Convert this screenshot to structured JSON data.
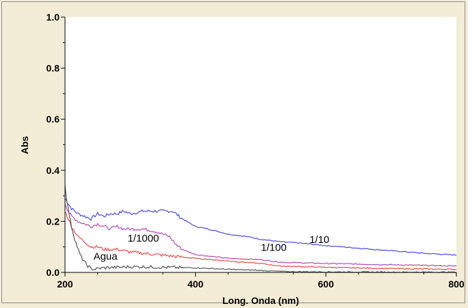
{
  "chart_data": {
    "type": "line",
    "xlabel": "Long. Onda (nm)",
    "ylabel": "Abs",
    "xlim": [
      200,
      800
    ],
    "ylim": [
      0,
      1.0
    ],
    "xticks": [
      200,
      400,
      600,
      800
    ],
    "yticks": [
      0.0,
      0.2,
      0.4,
      0.6,
      0.8,
      1.0
    ],
    "xtick_labels": [
      "200",
      "400",
      "600",
      "800"
    ],
    "ytick_labels": [
      "0.0",
      "0.2",
      "0.4",
      "0.6",
      "0.8",
      "1.0"
    ],
    "grid": false,
    "series": [
      {
        "name": "1/10",
        "color": "#4a4ae6",
        "x": [
          200,
          205,
          210,
          220,
          230,
          240,
          250,
          260,
          270,
          280,
          290,
          300,
          320,
          340,
          355,
          365,
          380,
          400,
          420,
          450,
          480,
          500,
          530,
          560,
          600,
          650,
          700,
          750,
          800
        ],
        "y": [
          0.29,
          0.27,
          0.25,
          0.23,
          0.22,
          0.21,
          0.23,
          0.22,
          0.23,
          0.23,
          0.24,
          0.23,
          0.24,
          0.24,
          0.24,
          0.24,
          0.21,
          0.18,
          0.17,
          0.15,
          0.14,
          0.13,
          0.12,
          0.115,
          0.105,
          0.095,
          0.085,
          0.075,
          0.068
        ]
      },
      {
        "name": "1/100",
        "color": "#b04ab0",
        "x": [
          200,
          205,
          210,
          220,
          230,
          240,
          250,
          260,
          270,
          280,
          290,
          300,
          320,
          340,
          360,
          370,
          380,
          400,
          450,
          500,
          530,
          600,
          700,
          800
        ],
        "y": [
          0.27,
          0.24,
          0.22,
          0.2,
          0.19,
          0.18,
          0.19,
          0.18,
          0.17,
          0.18,
          0.17,
          0.17,
          0.17,
          0.16,
          0.14,
          0.11,
          0.09,
          0.07,
          0.055,
          0.05,
          0.04,
          0.035,
          0.03,
          0.025
        ]
      },
      {
        "name": "1/1000",
        "color": "#e64a4a",
        "x": [
          200,
          205,
          210,
          215,
          220,
          230,
          240,
          250,
          260,
          280,
          300,
          320,
          340,
          360,
          380,
          400,
          450,
          500,
          530,
          600,
          700,
          800
        ],
        "y": [
          0.24,
          0.21,
          0.18,
          0.16,
          0.14,
          0.12,
          0.1,
          0.1,
          0.09,
          0.09,
          0.08,
          0.075,
          0.07,
          0.065,
          0.06,
          0.055,
          0.045,
          0.035,
          0.025,
          0.02,
          0.015,
          0.012
        ]
      },
      {
        "name": "Agua",
        "color": "#555555",
        "x": [
          200,
          203,
          207,
          210,
          215,
          220,
          225,
          230,
          235,
          240,
          245,
          250,
          260,
          280,
          300,
          320,
          350,
          400,
          450,
          500,
          530,
          550,
          600,
          700,
          800
        ],
        "y": [
          0.34,
          0.28,
          0.22,
          0.18,
          0.13,
          0.09,
          0.06,
          0.04,
          0.025,
          0.015,
          0.012,
          0.015,
          0.018,
          0.02,
          0.022,
          0.022,
          0.02,
          0.018,
          0.012,
          0.008,
          0.004,
          0.003,
          0.002,
          0.001,
          0.001
        ]
      }
    ],
    "annotations": [
      {
        "text": "1/10",
        "x": 590,
        "y": 0.115
      },
      {
        "text": "1/100",
        "x": 520,
        "y": 0.085
      },
      {
        "text": "1/1000",
        "x": 320,
        "y": 0.12
      },
      {
        "text": "Agua",
        "x": 262,
        "y": 0.05
      }
    ]
  }
}
